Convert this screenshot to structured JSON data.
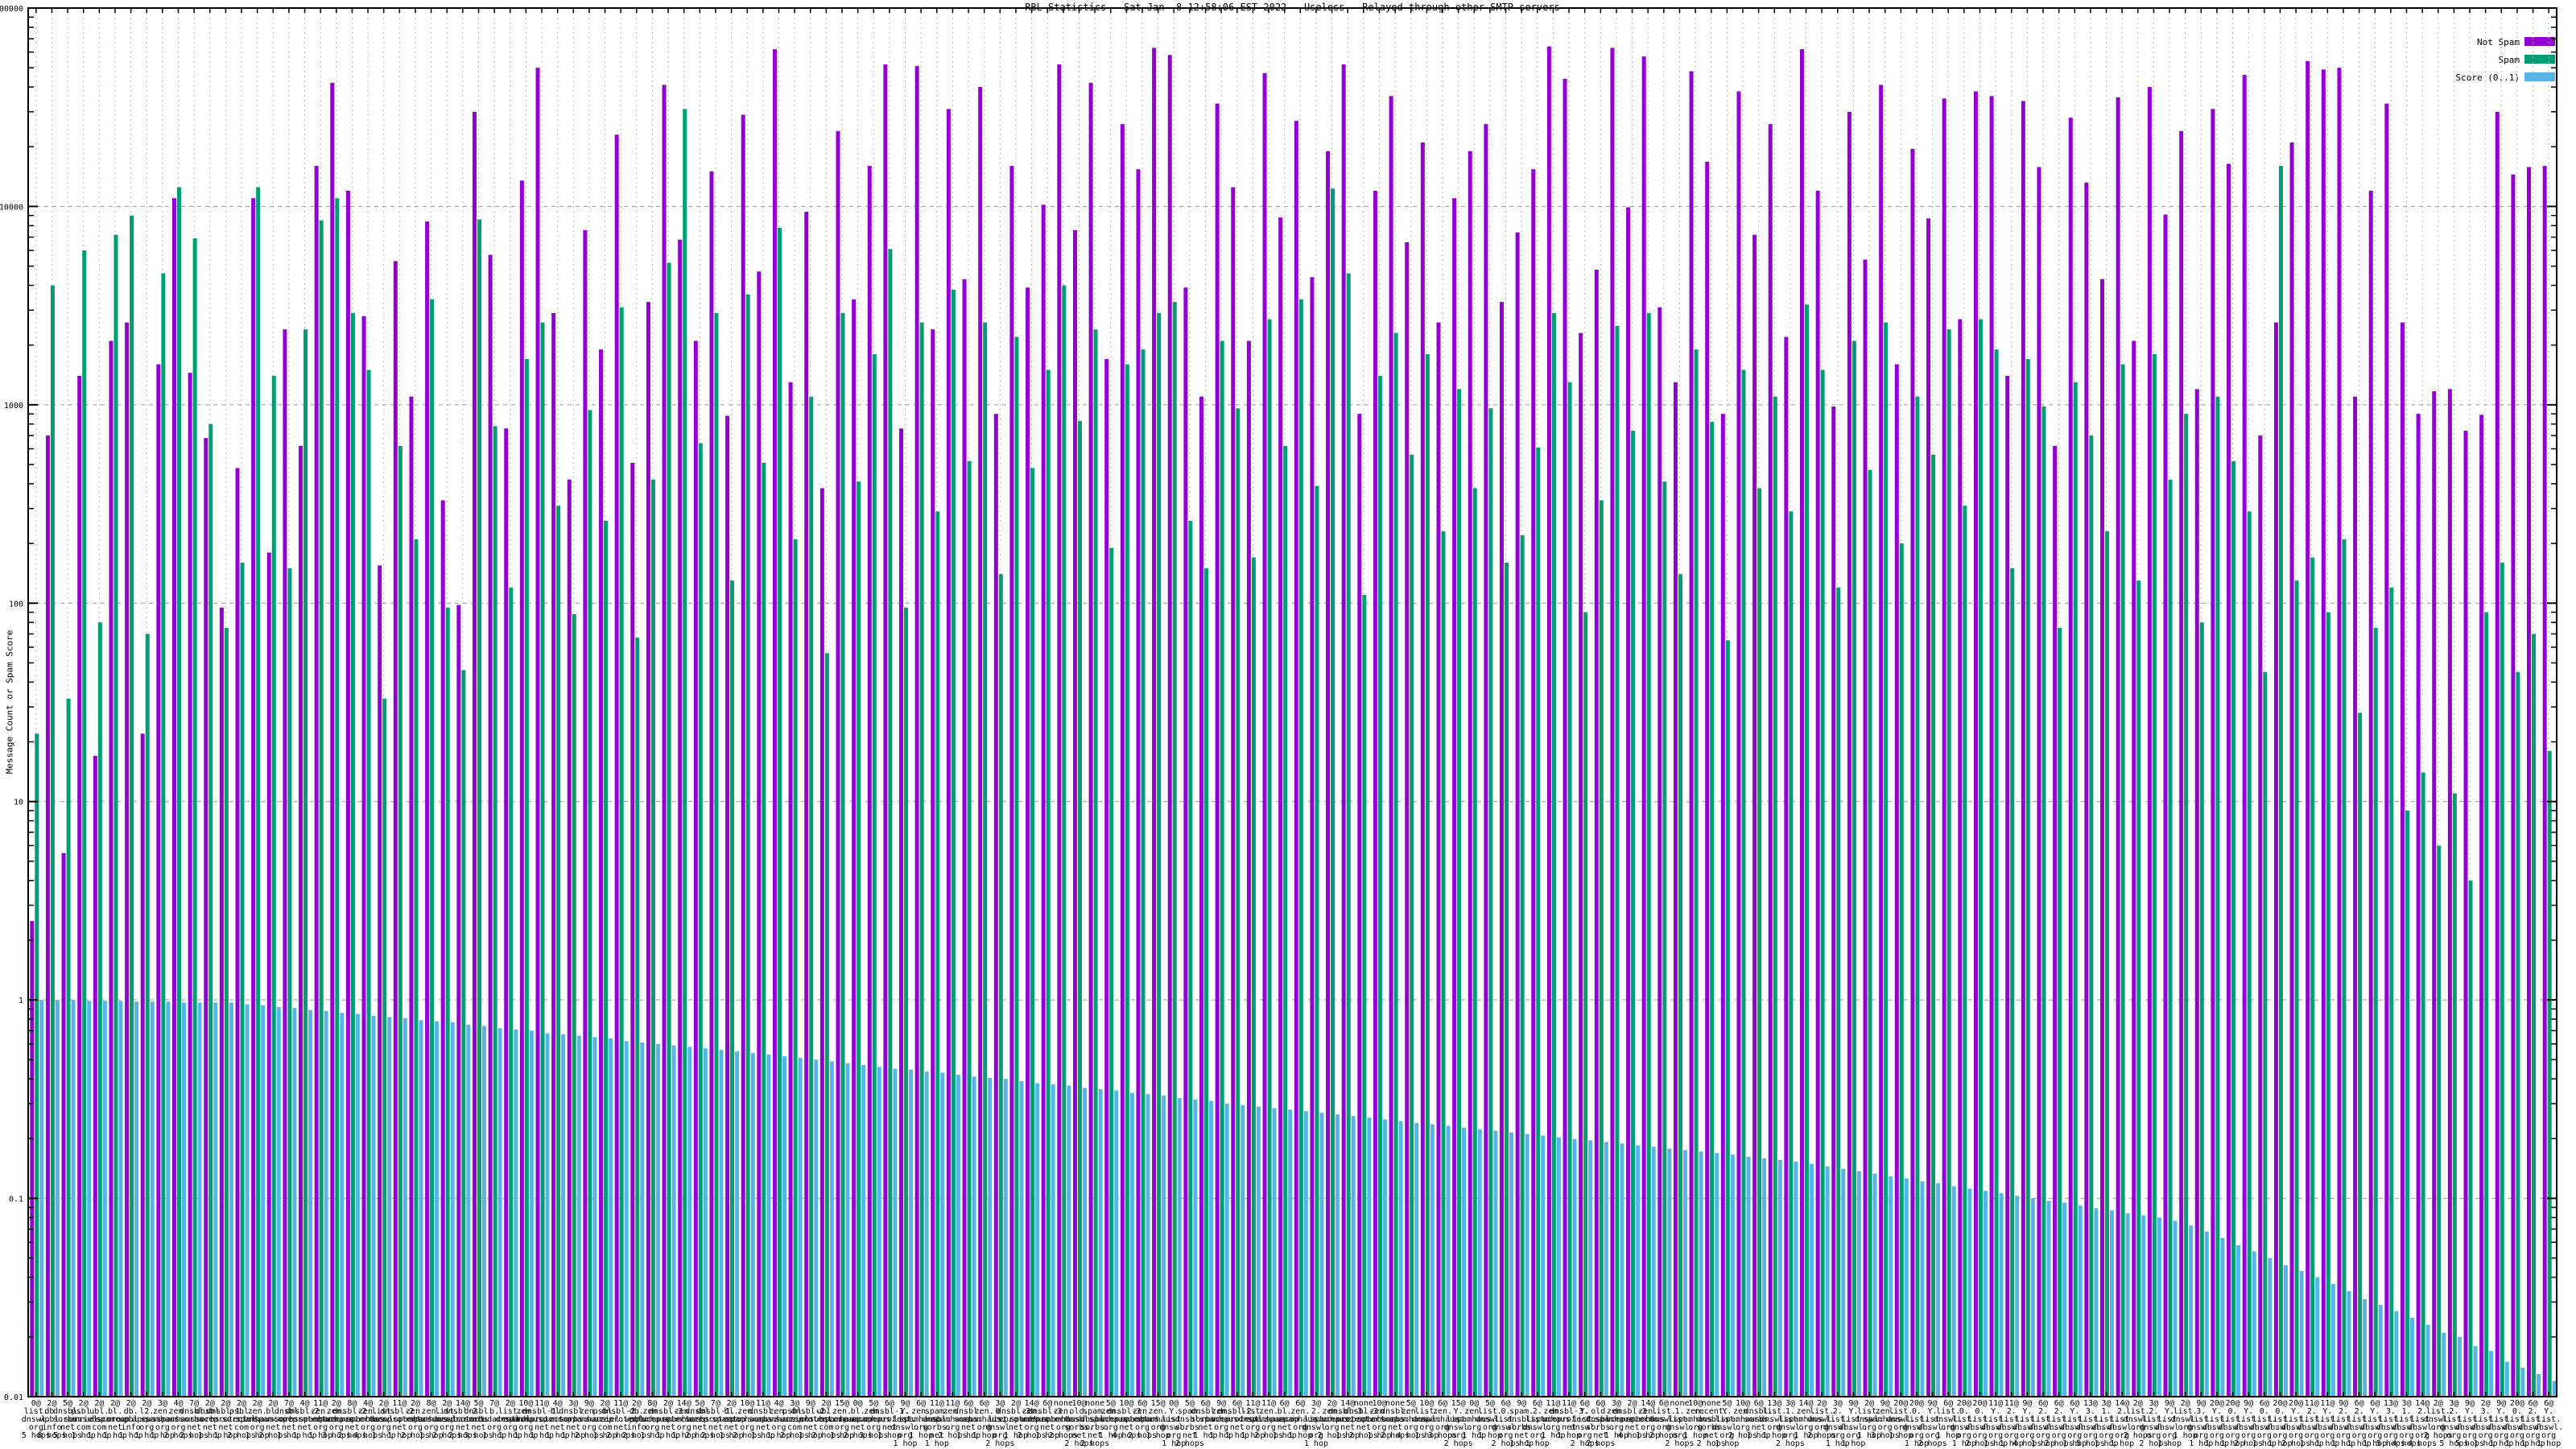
{
  "title": "RBL Statistics - Sat Jan  8 12:58:06 EST 2022 - Useless - Relayed through other SMTP servers",
  "ylabel": "Message Count or Spam Score",
  "legend": [
    {
      "label": "Not Spam",
      "color": "#9400d3"
    },
    {
      "label": "Spam",
      "color": "#009e73"
    },
    {
      "label": "Score (0..1)",
      "color": "#56b4e9"
    }
  ],
  "axes": {
    "y": {
      "scale": "log",
      "min": 0.01,
      "max": 100000,
      "tick_labels": [
        "100000",
        "10000",
        "1000",
        "100",
        "10",
        "1",
        "0.1",
        "0.01"
      ]
    }
  },
  "chart_data": {
    "type": "bar",
    "title": "RBL Statistics - Sat Jan  8 12:58:06 EST 2022 - Useless - Relayed through other SMTP servers",
    "xlabel": "",
    "ylabel": "Message Count or Spam Score",
    "ylog": true,
    "ylim": [
      0.01,
      100000
    ],
    "grid": true,
    "legend_position": "top-right",
    "categories": [
      "0@ list.dnswl.org 5 hops",
      "2@ db.wpbl.info 8 hops",
      "5@ dnsbl.sorbs.net 5 hops",
      "2@ psbl.surriel.com 1 hop",
      "2@ ubl.unsubscore.com 1 hop",
      "2@ bl.spamcop.net 1 hop",
      "2@ db.wpbl.info 1 hop",
      "2@ l2.apews.org 1 hop",
      "3@ zen.spamhaus.org 1 hop",
      "4@ zen.spamhaus.org 2 hops",
      "7@ dnsbl.sorbs.net 2 hops",
      "2@ dnsbl.sorbs.net 1 hop",
      "2@ dnsbl-1.uceprotect.net 1 hop",
      "2@ psbl.surriel.com 2 hops",
      "2@ zen.spamhaus.org 1 hop",
      "2@ bl.spamcop.net 2 hops",
      "7@ dnsbl.sorbs.net 1 hop",
      "4@ dnsbl-2.uceprotect.net 1 hop",
      "11@ zen.spamhaus.org 1 hop",
      "2@ zen.spamhaus.org 3 hops",
      "8@ dnsbl-2.uceprotect.net 2 hops",
      "4@ zen.spamhaus.org 4 hops",
      "2@ list.dnswl.org 1 hop",
      "11@ dnsbl-2.uceprotect.net 1 hop",
      "2@ zen.spamhaus.org 2 hops",
      "8@ zen.spamhaus.org 1 hop",
      "2@ list.dnswl.org 2 hops",
      "14@ dnsbl-2.uceprotect.net 2 hops",
      "5@ dnsbl.sorbs.net 3 hops",
      "7@ b.barracudacentral.org 1 hop",
      "2@ list.dnswl.org 1 hop",
      "10@ zen.spamhaus.org 1 hop",
      "11@ dnsbl-1.uceprotect.net 1 hop",
      "4@ bl.spamcop.net 1 hop",
      "3@ dnsbl.sorbs.net 1 hop",
      "9@ zen.spamhaus.org 2 hops",
      "2@ psbl.surriel.com 1 hop",
      "11@ dnsbl-2.uceprotect.net 2 hops",
      "2@ db.wpbl.info 2 hops",
      "8@ zen.spamhaus.org 1 hop",
      "2@ dnsbl-3.uceprotect.net 1 hop",
      "14@ zen.spamhaus.org 1 hop",
      "5@ dnsbl.sorbs.net 2 hops",
      "7@ dnsbl-1.uceprotect.net 2 hops",
      "2@ bl.spamcop.net 1 hop",
      "10@ zen.spamhaus.org 2 hops",
      "11@ dnsbl.sorbs.net 1 hop",
      "4@ zen.spamhaus.org 1 hop",
      "3@ psbl.surriel.com 2 hops",
      "9@ dnsbl-2.uceprotect.net 1 hop",
      "2@ ubl.unsubscore.com 2 hops",
      "15@ zen.spamhaus.org 1 hop",
      "0@ bl.spamcop.net 2 hops",
      "5@ zen.spamhaus.org 3 hops",
      "6@ dnsbl-1.uceprotect.net 1 hop",
      "9@ Y.list.dnswl.org 1 hop",
      "6@ zen.spamhaus.org 1 hop",
      "11@ spam.dnsbl.sorbs.net 1 hop",
      "11@ zen.spamhaus.org 2 hops",
      "6@ dnsbl.sorbs.net 1 hop",
      "6@ zen.spamhaus.org 1 hop",
      "3@ 0.list.dnswl.org 2 hops",
      "2@ dnsbl-3.uceprotect.net 1 hop",
      "14@ zen.spamhaus.org 2 hops",
      "6@ dnsbl-3.uceprotect.net 1 hop",
      "none zen.spamhaus.org 2 hops",
      "10@ old.dnsbl.sorbs.net 2 hops",
      "none spam.dnsbl.sorbs.net 2 hops",
      "5@ zen.spamhaus.org 1 hop",
      "10@ dnsbl-3.uceprotect.net 4 hops",
      "6@ zen.spamhaus.org 2 hops",
      "15@ zen.spamhaus.org 1 hop",
      "0@ Y.list.dnswl.org 1 hop",
      "5@ spam.dnsbl.sorbs.net 2 hops",
      "6@ dnsbl.sorbs.net 1 hop",
      "9@ zen.spamhaus.org 1 hop",
      "6@ dnsbl-2.uceprotect.net 1 hop",
      "11@ list.dnswl.org 1 hop",
      "11@ zen.spamhaus.org 2 hops",
      "6@ bl.spamcop.net 1 hop",
      "6@ zen.spamhaus.org 1 hop",
      "3@ 2.list.dnswl.org 1 hop",
      "2@ zen.spamhaus.org 2 hops",
      "14@ dnsbl-3.uceprotect.net 1 hop",
      "none dnsbl-3.uceprotect.net 2 hops",
      "10@ zen.spamhaus.org 1 hop",
      "none dnsbl.sorbs.net 2 hops",
      "5@ zen.spamhaus.org 4 hops",
      "10@ list.dnswl.org 1 hop",
      "6@ zen.spamhaus.org 3 hops",
      "15@ Y.list.dnswl.org 2 hops",
      "0@ zen.spamhaus.org 1 hop",
      "5@ list.dnswl.org 1 hop",
      "6@ 0.list.dnswl.org 2 hops",
      "9@ spam.dnsbl.sorbs.net 1 hop",
      "6@ 2.list.dnswl.org 1 hop",
      "11@ zen.spamhaus.org 1 hop",
      "11@ dnsbl-3.uceprotect.net 1 hop",
      "6@ Y.list.dnswl.org 2 hops",
      "6@ old.dnsbl.sorbs.net 2 hops",
      "3@ zen.spamhaus.org 1 hop",
      "2@ dnsbl-3.uceprotect.net 4 hops",
      "14@ zen.spamhaus.org 1 hop",
      "6@ list.dnswl.org 2 hops",
      "none 1.list.dnswl.org 2 hops",
      "10@ zen.spamhaus.org 1 hop",
      "none recent.dnsbl.sorbs.net 2 hops",
      "5@ Y.list.dnswl.org 1 hop",
      "10@ zen.spamhaus.org 2 hops",
      "6@ dnsbl.sorbs.net 1 hop",
      "13@ list.dnswl.org 1 hop",
      "3@ 1.list.dnswl.org 2 hops",
      "14@ zen.spamhaus.org 1 hop",
      "2@ list.dnswl.org 2 hops",
      "3@ 2.list.dnswl.org 1 hop",
      "9@ Y.list.dnswl.org 1 hop",
      "2@ list.dnswl.org 1 hop",
      "9@ zen.spamhaus.org 3 hops",
      "20@ list.dnswl.org 1 hop",
      "20@ 0.list.dnswl.org 1 hop",
      "9@ Y.list.dnswl.org 2 hops",
      "6@ list.dnswl.org 1 hop",
      "20@ 0.list.dnswl.org 1 hop",
      "20@ 0.list.dnswl.org 2 hops",
      "11@ Y.list.dnswl.org 1 hop",
      "11@ 2.list.dnswl.org 1 hop",
      "9@ Y.list.dnswl.org 4 hops",
      "6@ 2.list.dnswl.org 1 hop",
      "6@ 2.list.dnswl.org 2 hops",
      "6@ Y.list.dnswl.org 1 hop",
      "13@ 3.list.dnswl.org 5 hops",
      "3@ 1.list.dnswl.org 1 hop",
      "14@ 2.list.dnswl.org 1 hop",
      "2@ list.dnswl.org 2 hops",
      "3@ 2.list.dnswl.org 2 hops",
      "9@ Y.list.dnswl.org 1 hop",
      "2@ list.dnswl.org 1 hop",
      "9@ 3.list.dnswl.org 1 hop",
      "20@ Y.list.dnswl.org 1 hop",
      "20@ 0.list.dnswl.org 1 hop",
      "9@ Y.list.dnswl.org 2 hops",
      "6@ 0.list.dnswl.org 1 hop",
      "20@ 0.list.dnswl.org 1 hop",
      "20@ Y.list.dnswl.org 2 hops",
      "11@ 2.list.dnswl.org 1 hop",
      "11@ Y.list.dnswl.org 1 hop",
      "9@ 2.list.dnswl.org 1 hop",
      "6@ 2.list.dnswl.org 1 hop",
      "6@ Y.list.dnswl.org 1 hop",
      "13@ 3.list.dnswl.org 5 hops",
      "3@ 1.list.dnswl.org 4 hops",
      "14@ 2.list.dnswl.org 4 hops",
      "2@ list.dnswl.org 2 hops",
      "3@ 2.list.dnswl.org 5 hops",
      "9@ Y.list.dnswl.org 5 hops",
      "2@ 3.list.dnswl.org 1 hop",
      "9@ Y.list.dnswl.org 1 hop",
      "20@ 0.list.dnswl.org 1 hop",
      "6@ 2.list.dnswl.org 1 hop",
      "6@ Y.list.dnswl.org 1 hop"
    ],
    "series": [
      {
        "name": "Not Spam",
        "color": "#9400d3",
        "values": [
          2.5,
          700,
          5.5,
          1400,
          17,
          2100,
          2600,
          22,
          1600,
          11000,
          1450,
          680,
          95,
          480,
          11000,
          180,
          2400,
          620,
          16000,
          42000,
          12000,
          2800,
          155,
          5300,
          1100,
          8400,
          330,
          98,
          30000,
          5700,
          760,
          13500,
          50000,
          2900,
          420,
          7600,
          1900,
          23000,
          510,
          3300,
          41000,
          6800,
          2100,
          15000,
          880,
          29000,
          4700,
          62000,
          1300,
          9400,
          380,
          24000,
          3400,
          16000,
          52000,
          760,
          51000,
          2400,
          31000,
          4300,
          40000,
          900,
          16000,
          3900,
          10200,
          52000,
          7600,
          42000,
          1700,
          26000,
          15400,
          63000,
          58000,
          3900,
          1100,
          33000,
          12500,
          2100,
          47000,
          8800,
          27000,
          4400,
          19000,
          52000,
          900,
          12000,
          36000,
          6600,
          21000,
          2600,
          11000,
          19000,
          26000,
          3300,
          7400,
          15400,
          64000,
          44000,
          2300,
          4800,
          63000,
          9900,
          57000,
          3100,
          1300,
          48000,
          16800,
          900,
          38000,
          7200,
          26000,
          2200,
          62000,
          12000,
          980,
          30000,
          5400,
          41000,
          1600,
          19500,
          8700,
          35000,
          2700,
          38000,
          36000,
          1400,
          34000,
          15800,
          620,
          28000,
          13200,
          4300,
          35500,
          2100,
          40000,
          9100,
          24000,
          1200,
          31000,
          16400,
          46000,
          700,
          2600,
          21000,
          54000,
          49000,
          50000,
          1100,
          12000,
          33000,
          2600,
          900,
          1170,
          1200,
          740,
          890,
          30000,
          14500,
          15800,
          16000
        ]
      },
      {
        "name": "Spam",
        "color": "#009e73",
        "values": [
          22,
          4000,
          33,
          6000,
          80,
          7200,
          9000,
          70,
          4600,
          12500,
          6900,
          800,
          75,
          160,
          12500,
          1400,
          150,
          2400,
          8500,
          11000,
          2900,
          1500,
          33,
          620,
          210,
          3400,
          95,
          46,
          8600,
          780,
          120,
          1700,
          2600,
          310,
          88,
          940,
          260,
          3100,
          67,
          420,
          5200,
          31000,
          640,
          2900,
          130,
          3600,
          510,
          7800,
          210,
          1100,
          56,
          2900,
          410,
          1800,
          6100,
          95,
          2600,
          290,
          3800,
          520,
          2600,
          140,
          2200,
          480,
          1500,
          4000,
          830,
          2400,
          190,
          1600,
          1900,
          2900,
          3300,
          260,
          150,
          2100,
          960,
          170,
          2700,
          620,
          3400,
          390,
          12300,
          4600,
          110,
          1400,
          2300,
          560,
          1800,
          230,
          1200,
          380,
          960,
          160,
          220,
          610,
          2900,
          1300,
          90,
          330,
          2500,
          740,
          2900,
          410,
          140,
          1900,
          820,
          65,
          1500,
          380,
          1100,
          290,
          3200,
          1500,
          120,
          2100,
          470,
          2600,
          200,
          1100,
          560,
          2400,
          310,
          2700,
          1900,
          150,
          1700,
          980,
          75,
          1300,
          700,
          230,
          1600,
          130,
          1800,
          420,
          900,
          80,
          1100,
          520,
          290,
          45,
          16000,
          130,
          170,
          90,
          210,
          28,
          75,
          120,
          9,
          14,
          6,
          11,
          4,
          90,
          160,
          45,
          70,
          18
        ]
      },
      {
        "name": "Score (0..1)",
        "color": "#56b4e9",
        "values": [
          1.0,
          1.0,
          1.0,
          0.99,
          0.99,
          0.99,
          0.98,
          0.98,
          0.98,
          0.97,
          0.97,
          0.97,
          0.97,
          0.95,
          0.94,
          0.92,
          0.91,
          0.89,
          0.88,
          0.86,
          0.85,
          0.83,
          0.82,
          0.81,
          0.79,
          0.78,
          0.77,
          0.75,
          0.74,
          0.72,
          0.71,
          0.7,
          0.68,
          0.67,
          0.66,
          0.65,
          0.64,
          0.62,
          0.61,
          0.6,
          0.59,
          0.58,
          0.57,
          0.56,
          0.55,
          0.54,
          0.53,
          0.52,
          0.51,
          0.5,
          0.49,
          0.48,
          0.47,
          0.46,
          0.45,
          0.445,
          0.435,
          0.43,
          0.42,
          0.41,
          0.405,
          0.4,
          0.39,
          0.38,
          0.375,
          0.37,
          0.36,
          0.355,
          0.35,
          0.34,
          0.335,
          0.33,
          0.32,
          0.315,
          0.31,
          0.3,
          0.295,
          0.29,
          0.285,
          0.28,
          0.275,
          0.27,
          0.265,
          0.26,
          0.255,
          0.25,
          0.245,
          0.24,
          0.236,
          0.232,
          0.227,
          0.223,
          0.219,
          0.215,
          0.211,
          0.207,
          0.203,
          0.199,
          0.196,
          0.192,
          0.189,
          0.185,
          0.182,
          0.178,
          0.175,
          0.172,
          0.169,
          0.166,
          0.162,
          0.159,
          0.156,
          0.153,
          0.149,
          0.145,
          0.141,
          0.137,
          0.133,
          0.129,
          0.126,
          0.122,
          0.119,
          0.115,
          0.112,
          0.109,
          0.106,
          0.103,
          0.1,
          0.097,
          0.095,
          0.092,
          0.089,
          0.087,
          0.084,
          0.082,
          0.08,
          0.077,
          0.073,
          0.068,
          0.063,
          0.058,
          0.054,
          0.05,
          0.046,
          0.043,
          0.04,
          0.037,
          0.034,
          0.031,
          0.029,
          0.027,
          0.025,
          0.023,
          0.021,
          0.02,
          0.018,
          0.017,
          0.015,
          0.014,
          0.013,
          0.012
        ]
      }
    ]
  }
}
